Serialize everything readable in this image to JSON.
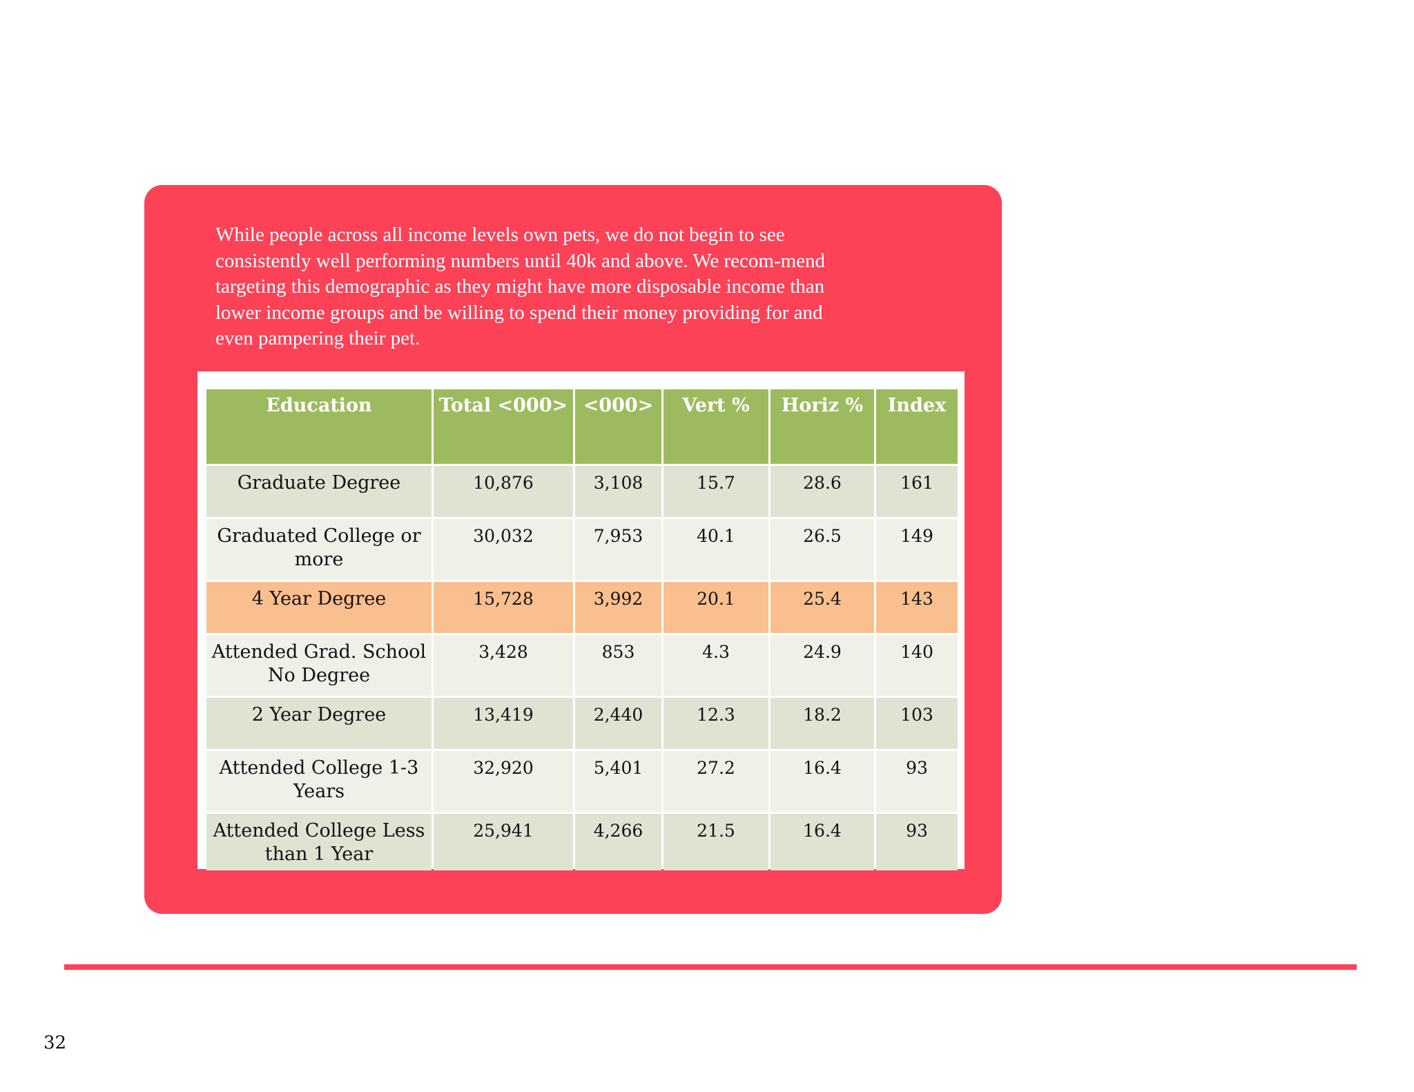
{
  "intro_text": "While people across all income levels own pets, we do not begin to see consistently well performing numbers until 40k and above. We recom-mend targeting this demographic as they might have more disposable income than lower income groups and be willing to spend their money providing for and even pampering their pet.",
  "table": {
    "headers": [
      "Education",
      "Total <000>",
      "<000>",
      "Vert %",
      "Horiz %",
      "Index"
    ],
    "rows": [
      [
        "Graduate Degree",
        "10,876",
        "3,108",
        "15.7",
        "28.6",
        "161"
      ],
      [
        "Graduated College or more",
        "30,032",
        "7,953",
        "40.1",
        "26.5",
        "149"
      ],
      [
        "4 Year Degree",
        "15,728",
        "3,992",
        "20.1",
        "25.4",
        "143"
      ],
      [
        "Attended Grad. School No Degree",
        "3,428",
        "853",
        "4.3",
        "24.9",
        "140"
      ],
      [
        "2 Year Degree",
        "13,419",
        "2,440",
        "12.3",
        "18.2",
        "103"
      ],
      [
        "Attended College 1-3 Years",
        "32,920",
        "5,401",
        "27.2",
        "16.4",
        "93"
      ],
      [
        "Attended College Less than 1 Year",
        "25,941",
        "4,266",
        "21.5",
        "16.4",
        "93"
      ]
    ]
  },
  "page_number": "32",
  "colors": {
    "panel": "#fd4157",
    "header": "#9dbb5e",
    "row_light": "#dfe4d2",
    "row_lighter": "#eff1e9",
    "row_highlight": "#f9bf8f"
  }
}
